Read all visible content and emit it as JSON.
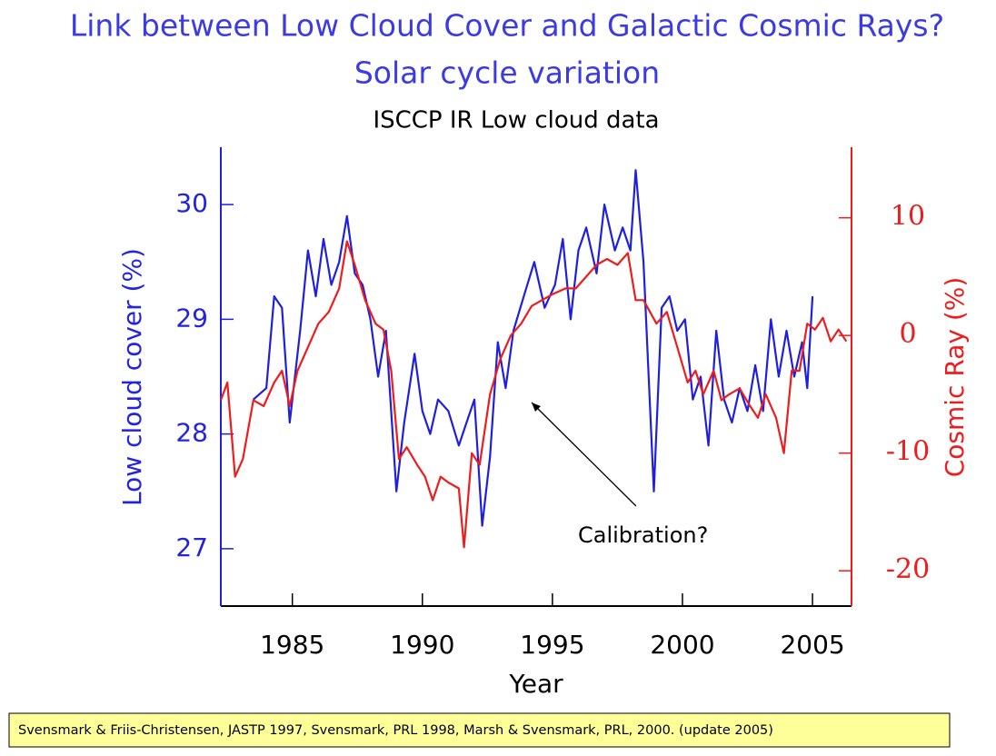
{
  "chart_data": {
    "type": "line",
    "title": "Link between Low Cloud Cover and Galactic Cosmic Rays?",
    "subtitle": "Solar cycle variation",
    "chart_title": "ISCCP IR Low cloud data",
    "x_label": "Year",
    "y_label": "Low cloud cover (%)",
    "y2_label": "Cosmic Ray (%)",
    "annotation": "Calibration?",
    "source": "Svensmark & Friis-Christensen, JASTP 1997, Svensmark, PRL  1998, Marsh & Svensmark, PRL, 2000. (update 2005)",
    "xlim": [
      1982.25,
      2006.5
    ],
    "xticks": [
      1985,
      1990,
      1995,
      2000,
      2005
    ],
    "ylim": [
      26.5,
      30.5
    ],
    "yticks": [
      27,
      28,
      29,
      30
    ],
    "y2lim": [
      -23,
      16
    ],
    "y2ticks": [
      -20,
      -10,
      0,
      10
    ],
    "series": [
      {
        "name": "Low cloud cover",
        "color": "#1f1fe0",
        "axis": "y",
        "x": [
          1983.5,
          1984.0,
          1984.3,
          1984.6,
          1984.9,
          1985.3,
          1985.6,
          1985.9,
          1986.2,
          1986.5,
          1986.8,
          1987.1,
          1987.4,
          1987.7,
          1988.0,
          1988.3,
          1988.6,
          1989.0,
          1989.3,
          1989.7,
          1990.0,
          1990.3,
          1990.6,
          1991.0,
          1991.4,
          1991.7,
          1992.0,
          1992.3,
          1992.6,
          1992.9,
          1993.2,
          1993.5,
          1993.9,
          1994.3,
          1994.7,
          1995.1,
          1995.4,
          1995.7,
          1996.0,
          1996.3,
          1996.7,
          1997.0,
          1997.4,
          1997.7,
          1998.0,
          1998.2,
          1998.5,
          1998.7,
          1998.9,
          1999.2,
          1999.5,
          1999.8,
          2000.1,
          2000.4,
          2000.7,
          2001.0,
          2001.3,
          2001.6,
          2001.9,
          2002.2,
          2002.5,
          2002.8,
          2003.1,
          2003.4,
          2003.7,
          2004.0,
          2004.3,
          2004.6,
          2004.8,
          2005.0
        ],
        "values": [
          28.3,
          28.4,
          29.2,
          29.1,
          28.1,
          28.9,
          29.6,
          29.2,
          29.7,
          29.3,
          29.5,
          29.9,
          29.4,
          29.3,
          29.0,
          28.5,
          28.9,
          27.5,
          28.1,
          28.7,
          28.2,
          28.0,
          28.3,
          28.2,
          27.9,
          28.1,
          28.3,
          27.2,
          27.8,
          28.8,
          28.4,
          28.9,
          29.2,
          29.5,
          29.1,
          29.3,
          29.7,
          29.0,
          29.6,
          29.8,
          29.4,
          30.0,
          29.6,
          29.8,
          29.6,
          30.3,
          29.5,
          28.5,
          27.5,
          29.1,
          29.2,
          28.9,
          29.0,
          28.3,
          28.5,
          27.9,
          28.9,
          28.3,
          28.1,
          28.4,
          28.2,
          28.6,
          28.2,
          29.0,
          28.5,
          28.9,
          28.5,
          28.8,
          28.4,
          29.2
        ]
      },
      {
        "name": "Cosmic Ray",
        "color": "#ee1c1c",
        "axis": "y2",
        "x": [
          1982.25,
          1982.5,
          1982.8,
          1983.1,
          1983.5,
          1983.9,
          1984.3,
          1984.6,
          1984.9,
          1985.2,
          1985.6,
          1986.0,
          1986.4,
          1986.8,
          1987.1,
          1987.4,
          1987.8,
          1988.2,
          1988.5,
          1988.8,
          1989.1,
          1989.4,
          1989.8,
          1990.1,
          1990.4,
          1990.7,
          1991.0,
          1991.4,
          1991.6,
          1991.9,
          1992.2,
          1992.6,
          1993.0,
          1993.4,
          1993.8,
          1994.2,
          1994.6,
          1995.0,
          1995.5,
          1995.9,
          1996.3,
          1996.7,
          1997.1,
          1997.5,
          1997.9,
          1998.2,
          1998.5,
          1999.0,
          1999.4,
          1999.8,
          2000.2,
          2000.5,
          2000.8,
          2001.2,
          2001.5,
          2001.8,
          2002.2,
          2002.6,
          2002.9,
          2003.2,
          2003.6,
          2003.9,
          2004.2,
          2004.5,
          2004.8,
          2005.1,
          2005.4,
          2005.7,
          2006.0,
          2006.3
        ],
        "values": [
          -5.5,
          -4,
          -12,
          -10.5,
          -5.5,
          -6,
          -4,
          -3,
          -6,
          -3,
          -1,
          1,
          2,
          4,
          8,
          6,
          3,
          1,
          0.5,
          -3,
          -10.5,
          -9.5,
          -11,
          -12,
          -14,
          -12,
          -12.5,
          -13,
          -18,
          -10,
          -11,
          -5,
          -2,
          0,
          1,
          2.5,
          3,
          3.5,
          4,
          4,
          5,
          6,
          6.5,
          6,
          7,
          3,
          3,
          1,
          2,
          -1,
          -4,
          -3,
          -5,
          -3,
          -5.5,
          -5,
          -4.5,
          -6,
          -7,
          -5,
          -7,
          -10,
          -3,
          -3,
          1,
          0.5,
          1.5,
          -0.5,
          0.5,
          -0.5
        ]
      }
    ]
  }
}
